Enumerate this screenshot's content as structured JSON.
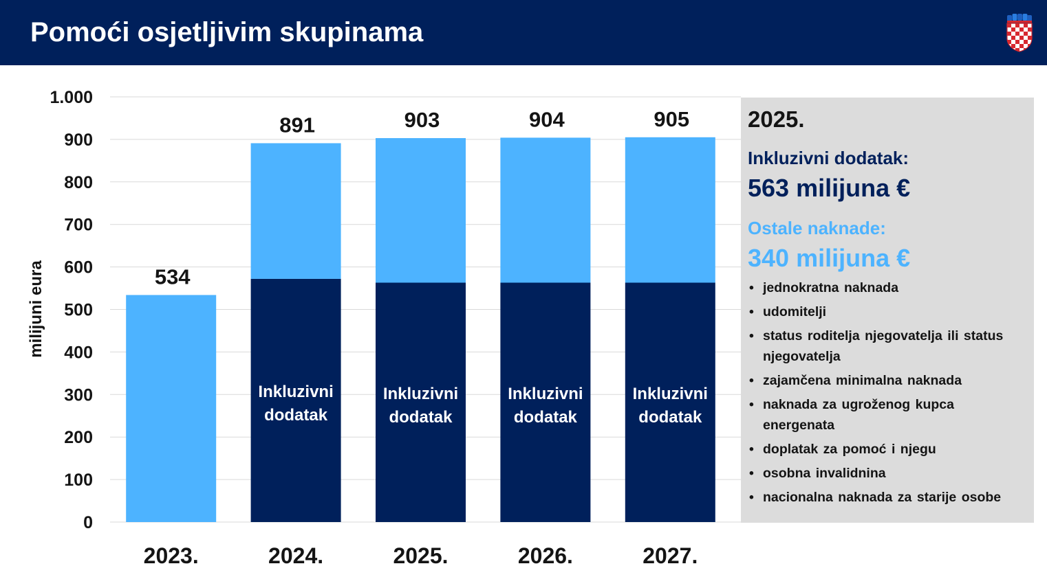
{
  "header": {
    "title": "Pomoći osjetljivim skupinama",
    "colors": {
      "background": "#00205b",
      "text": "#ffffff"
    },
    "emblem_icon": "croatian-coat-of-arms-icon"
  },
  "colors": {
    "inclusive": "#00205b",
    "other": "#4db3ff",
    "gridline": "#d9d9d9",
    "panel_bg": "#dcdcdc",
    "text_dark": "#141414"
  },
  "chart_data": {
    "type": "bar",
    "stacked": true,
    "ylabel": "milijuni eura",
    "ylim": [
      0,
      1000
    ],
    "yticks": [
      0,
      100,
      200,
      300,
      400,
      500,
      600,
      700,
      800,
      900,
      1000
    ],
    "ytick_labels": [
      "0",
      "100",
      "200",
      "300",
      "400",
      "500",
      "600",
      "700",
      "800",
      "900",
      "1.000"
    ],
    "grid": true,
    "categories": [
      "2023.",
      "2024.",
      "2025.",
      "2026.",
      "2027."
    ],
    "series": [
      {
        "values": [
          0,
          572,
          563,
          563,
          563
        ]
      },
      {
        "values": [
          534,
          319,
          340,
          341,
          342
        ]
      }
    ],
    "totals": [
      534,
      891,
      903,
      904,
      905
    ],
    "segment_label": "Inkluzivni dodatak",
    "segment_label_lines": [
      "Inkluzivni",
      "dodatak"
    ]
  },
  "panel": {
    "year": "2025.",
    "inclusive_label": "Inkluzivni dodatak:",
    "inclusive_amount": "563 milijuna €",
    "other_label": "Ostale naknade:",
    "other_amount": "340 milijuna €",
    "items": [
      "jednokratna naknada",
      "udomitelji",
      "status roditelja njegovatelja ili status njegovatelja",
      "zajamčena minimalna naknada",
      "naknada za ugroženog kupca energenata",
      "doplatak za pomoć i njegu",
      "osobna invalidnina",
      "nacionalna naknada za starije osobe"
    ]
  }
}
